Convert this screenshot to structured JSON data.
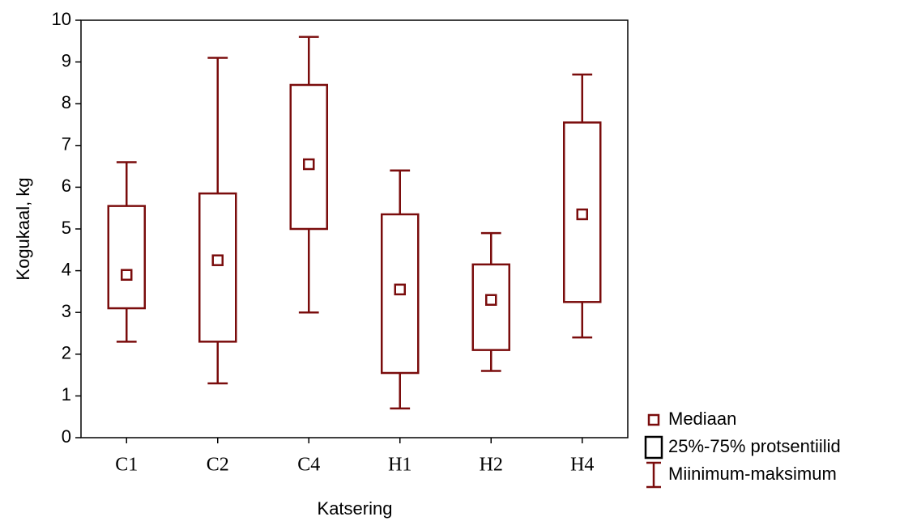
{
  "chart_data": {
    "type": "box",
    "x_label": "Katsering",
    "y_label": "Kogukaal, kg",
    "categories": [
      "C1",
      "C2",
      "C4",
      "H1",
      "H2",
      "H4"
    ],
    "min": [
      2.3,
      1.3,
      3.0,
      0.7,
      1.6,
      2.4
    ],
    "q1": [
      3.1,
      2.3,
      5.0,
      1.55,
      2.1,
      3.25
    ],
    "median": [
      3.9,
      4.25,
      6.55,
      3.55,
      3.3,
      5.35
    ],
    "q3": [
      5.55,
      5.85,
      8.45,
      5.35,
      4.15,
      7.55
    ],
    "max": [
      6.6,
      9.1,
      9.6,
      6.4,
      4.9,
      8.7
    ],
    "legend": [
      "Mediaan",
      "25%-75% protsentiilid",
      "Miinimum-maksimum"
    ],
    "color": "#7a0c0c",
    "ylim": [
      0,
      10
    ],
    "yticks": [
      0,
      1,
      2,
      3,
      4,
      5,
      6,
      7,
      8,
      9,
      10
    ]
  }
}
